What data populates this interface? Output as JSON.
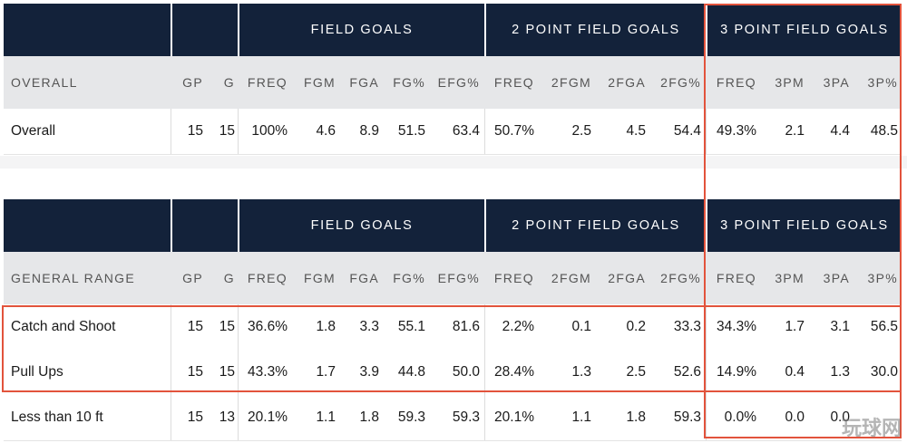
{
  "groups": {
    "field_goals": "FIELD GOALS",
    "two_point": "2 POINT FIELD GOALS",
    "three_point": "3 POINT FIELD GOALS"
  },
  "columns": [
    "GP",
    "G",
    "FREQ",
    "FGM",
    "FGA",
    "FG%",
    "EFG%",
    "FREQ",
    "2FGM",
    "2FGA",
    "2FG%",
    "FREQ",
    "3PM",
    "3PA",
    "3P%"
  ],
  "overall_table": {
    "title": "OVERALL",
    "rows": [
      {
        "name": "Overall",
        "cells": [
          "15",
          "15",
          "100%",
          "4.6",
          "8.9",
          "51.5",
          "63.4",
          "50.7%",
          "2.5",
          "4.5",
          "54.4",
          "49.3%",
          "2.1",
          "4.4",
          "48.5"
        ]
      }
    ]
  },
  "range_table": {
    "title": "GENERAL RANGE",
    "rows": [
      {
        "name": "Catch and Shoot",
        "cells": [
          "15",
          "15",
          "36.6%",
          "1.8",
          "3.3",
          "55.1",
          "81.6",
          "2.2%",
          "0.1",
          "0.2",
          "33.3",
          "34.3%",
          "1.7",
          "3.1",
          "56.5"
        ]
      },
      {
        "name": "Pull Ups",
        "cells": [
          "15",
          "15",
          "43.3%",
          "1.7",
          "3.9",
          "44.8",
          "50.0",
          "28.4%",
          "1.3",
          "2.5",
          "52.6",
          "14.9%",
          "0.4",
          "1.3",
          "30.0"
        ]
      },
      {
        "name": "Less than 10 ft",
        "cells": [
          "15",
          "13",
          "20.1%",
          "1.1",
          "1.8",
          "59.3",
          "59.3",
          "20.1%",
          "1.1",
          "1.8",
          "59.3",
          "0.0%",
          "0.0",
          "0.0",
          ""
        ]
      }
    ]
  },
  "highlight_color": "#e2533c",
  "watermark": "玩球网"
}
